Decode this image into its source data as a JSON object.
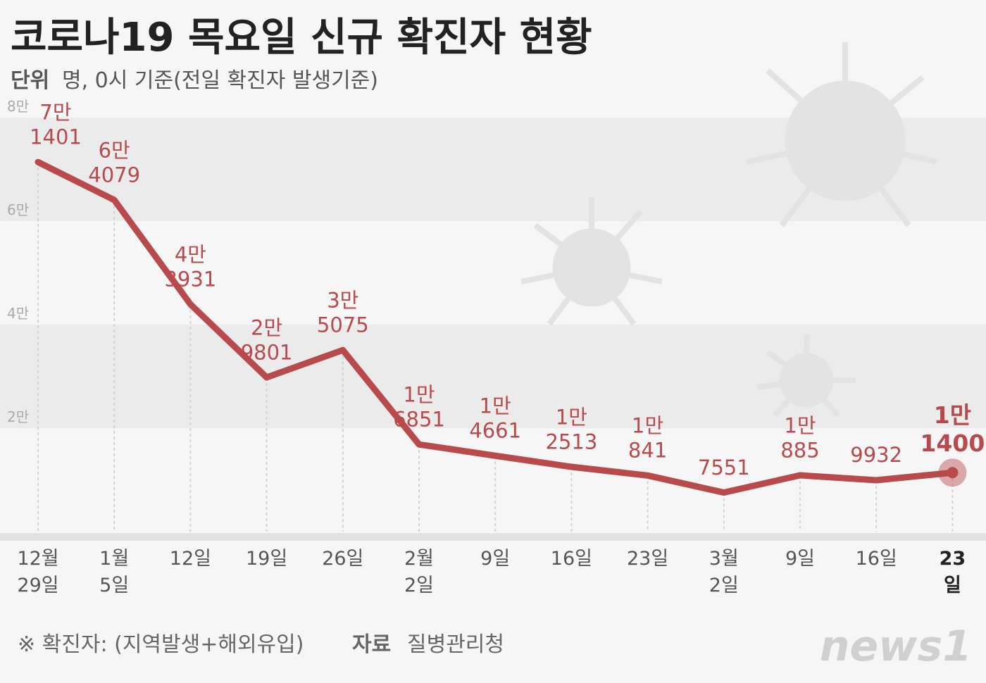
{
  "chart_data": {
    "type": "line",
    "title": "코로나19 목요일 신규 확진자 현황",
    "unit_label": "단위",
    "subtitle": "명, 0시 기준(전일 확진자 발생기준)",
    "footnote": "※ 확진자: (지역발생+해외유입)",
    "source_label": "자료",
    "source": "질병관리청",
    "logo": "news1",
    "categories": [
      "12월\n29일",
      "1월\n5일",
      "12일",
      "19일",
      "26일",
      "2월\n2일",
      "9일",
      "16일",
      "23일",
      "3월\n2일",
      "9일",
      "16일",
      "23일"
    ],
    "series": [
      {
        "name": "신규 확진자",
        "color": "#b84a4c",
        "values": [
          71401,
          64079,
          43931,
          29801,
          35075,
          16851,
          14661,
          12513,
          10841,
          7551,
          10885,
          9932,
          11400
        ],
        "value_labels": [
          "7만\n1401",
          "6만\n4079",
          "4만\n3931",
          "2만\n9801",
          "3만\n5075",
          "1만\n6851",
          "1만\n4661",
          "1만\n2513",
          "1만\n841",
          "7551",
          "1만\n885",
          "9932",
          "1만\n1400"
        ]
      }
    ],
    "ylim": [
      0,
      80000
    ],
    "yticks": [
      {
        "value": 20000,
        "label": "2만"
      },
      {
        "value": 40000,
        "label": "4만"
      },
      {
        "value": 60000,
        "label": "6만"
      },
      {
        "value": 80000,
        "label": "8만"
      }
    ],
    "grid": true
  }
}
